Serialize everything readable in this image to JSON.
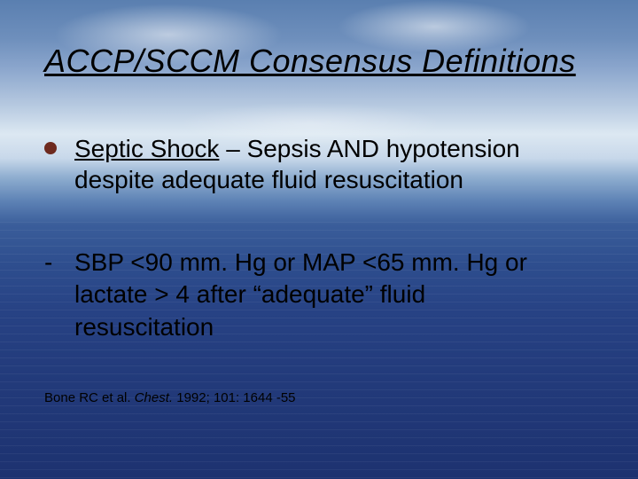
{
  "slide": {
    "title": "ACCP/SCCM Consensus Definitions",
    "bullet": {
      "term": "Septic Shock",
      "sep": " – ",
      "rest_line1": "Sepsis AND hypotension",
      "line2": "despite adequate fluid resuscitation",
      "dot_color": "#6e2a1f"
    },
    "criteria": {
      "dash": "- ",
      "line1": "SBP <90 mm. Hg or MAP <65 mm. Hg or",
      "line2": "lactate > 4 after “adequate” fluid",
      "line3": "resuscitation"
    },
    "citation": {
      "authors": "Bone RC et al. ",
      "journal": "Chest.",
      "rest": " 1992; 101: 1644 -55"
    },
    "colors": {
      "sky_top": "#5a7fb0",
      "sky_light": "#dce8f2",
      "ocean_mid": "#2e4e8e",
      "ocean_bottom": "#1d3270",
      "text": "#000000"
    }
  }
}
